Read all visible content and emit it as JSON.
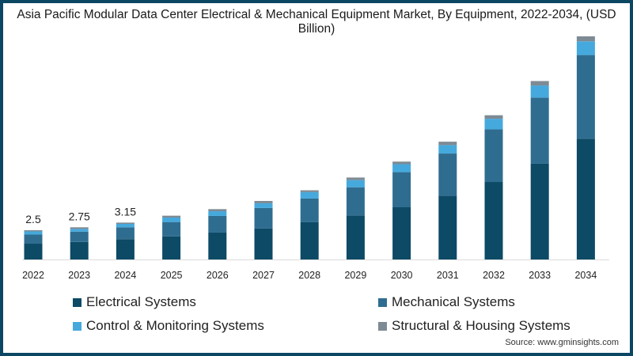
{
  "chart_data": {
    "type": "bar",
    "stacked": true,
    "title": "Asia Pacific Modular Data Center Electrical & Mechanical Equipment Market, By Equipment, 2022-2034, (USD Billion)",
    "xlabel": "",
    "ylabel": "",
    "ylim": [
      0,
      19.5
    ],
    "grid": false,
    "legend_position": "bottom",
    "categories": [
      "2022",
      "2023",
      "2024",
      "2025",
      "2026",
      "2027",
      "2028",
      "2029",
      "2030",
      "2031",
      "2032",
      "2033",
      "2034"
    ],
    "series": [
      {
        "name": "Electrical Systems",
        "color": "#0d4a66",
        "values": [
          1.35,
          1.5,
          1.74,
          1.98,
          2.3,
          2.64,
          3.18,
          3.76,
          4.46,
          5.45,
          6.62,
          8.18,
          10.32
        ]
      },
      {
        "name": "Mechanical Systems",
        "color": "#2f6d90",
        "values": [
          0.78,
          0.88,
          1.01,
          1.22,
          1.42,
          1.76,
          2.03,
          2.41,
          3.0,
          3.6,
          4.5,
          5.65,
          7.14
        ]
      },
      {
        "name": "Control & Monitoring Systems",
        "color": "#45a9dd",
        "values": [
          0.27,
          0.23,
          0.29,
          0.38,
          0.4,
          0.4,
          0.54,
          0.61,
          0.68,
          0.72,
          0.9,
          1.03,
          1.17
        ]
      },
      {
        "name": "Structural & Housing Systems",
        "color": "#7e8a94",
        "values": [
          0.1,
          0.14,
          0.11,
          0.16,
          0.18,
          0.2,
          0.16,
          0.22,
          0.22,
          0.29,
          0.3,
          0.38,
          0.43
        ]
      }
    ],
    "data_labels": [
      {
        "category": "2022",
        "text": "2.5"
      },
      {
        "category": "2023",
        "text": "2.75"
      },
      {
        "category": "2024",
        "text": "3.15"
      }
    ]
  },
  "source": "Source: www.gminsights.com"
}
